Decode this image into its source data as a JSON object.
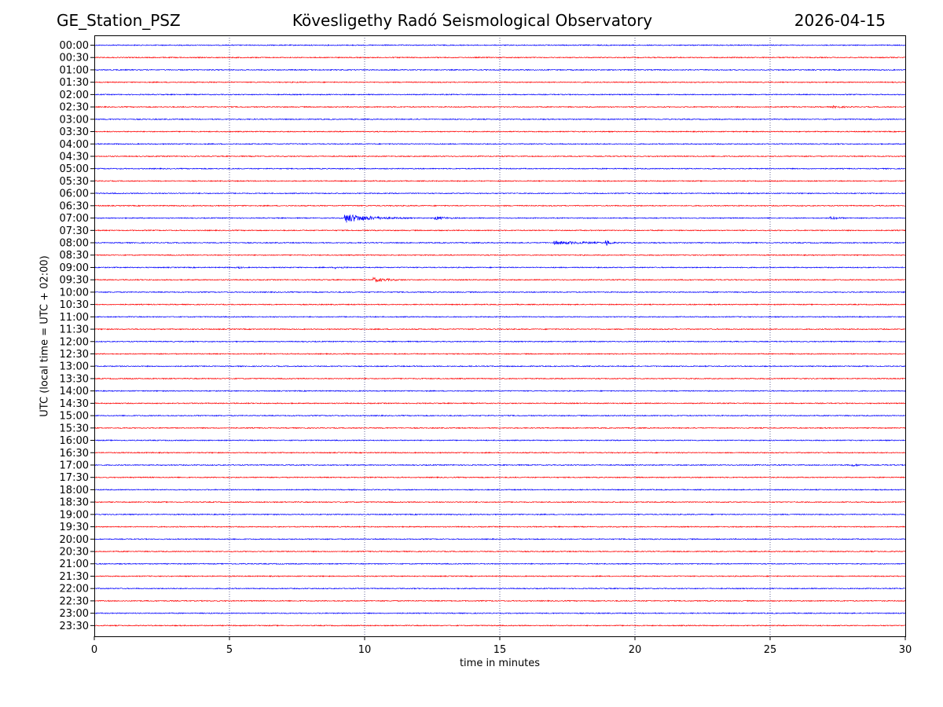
{
  "header": {
    "station": "GE_Station_PSZ",
    "observatory": "Kövesligethy Radó Seismological Observatory",
    "date": "2026-04-15"
  },
  "chart_data": {
    "type": "line",
    "title": "Kövesligethy Radó Seismological Observatory",
    "xlabel": "time in minutes",
    "ylabel": "UTC (local time = UTC + 02:00)",
    "xlim": [
      0,
      30
    ],
    "xticks": [
      0,
      5,
      10,
      15,
      20,
      25,
      30
    ],
    "grid": "vertical dotted at 5, 10, 15, 20, 25",
    "colors": {
      "even_rows": "#0000ff",
      "odd_rows": "#ff0000"
    },
    "rows": [
      "00:00",
      "00:30",
      "01:00",
      "01:30",
      "02:00",
      "02:30",
      "03:00",
      "03:30",
      "04:00",
      "04:30",
      "05:00",
      "05:30",
      "06:00",
      "06:30",
      "07:00",
      "07:30",
      "08:00",
      "08:30",
      "09:00",
      "09:30",
      "10:00",
      "10:30",
      "11:00",
      "11:30",
      "12:00",
      "12:30",
      "13:00",
      "13:30",
      "14:00",
      "14:30",
      "15:00",
      "15:30",
      "16:00",
      "16:30",
      "17:00",
      "17:30",
      "18:00",
      "18:30",
      "19:00",
      "19:30",
      "20:00",
      "20:30",
      "21:00",
      "21:30",
      "22:00",
      "22:30",
      "23:00",
      "23:30"
    ],
    "events": [
      {
        "row": "02:30",
        "start_min": 27.3,
        "end_min": 29.0,
        "amplitude": 1.3
      },
      {
        "row": "07:00",
        "start_min": 9.25,
        "end_min": 12.0,
        "amplitude": 6.0
      },
      {
        "row": "07:00",
        "start_min": 12.6,
        "end_min": 14.0,
        "amplitude": 2.2
      },
      {
        "row": "07:00",
        "start_min": 27.2,
        "end_min": 28.2,
        "amplitude": 2.0
      },
      {
        "row": "08:00",
        "start_min": 17.0,
        "end_min": 21.5,
        "amplitude": 2.0
      },
      {
        "row": "08:00",
        "start_min": 18.9,
        "end_min": 19.5,
        "amplitude": 4.5
      },
      {
        "row": "09:00",
        "start_min": 5.3,
        "end_min": 5.9,
        "amplitude": 1.2
      },
      {
        "row": "09:00",
        "start_min": 8.9,
        "end_min": 10.2,
        "amplitude": 1.3
      },
      {
        "row": "09:30",
        "start_min": 10.3,
        "end_min": 12.0,
        "amplitude": 2.8
      },
      {
        "row": "17:00",
        "start_min": 28.0,
        "end_min": 29.0,
        "amplitude": 1.5
      }
    ]
  }
}
